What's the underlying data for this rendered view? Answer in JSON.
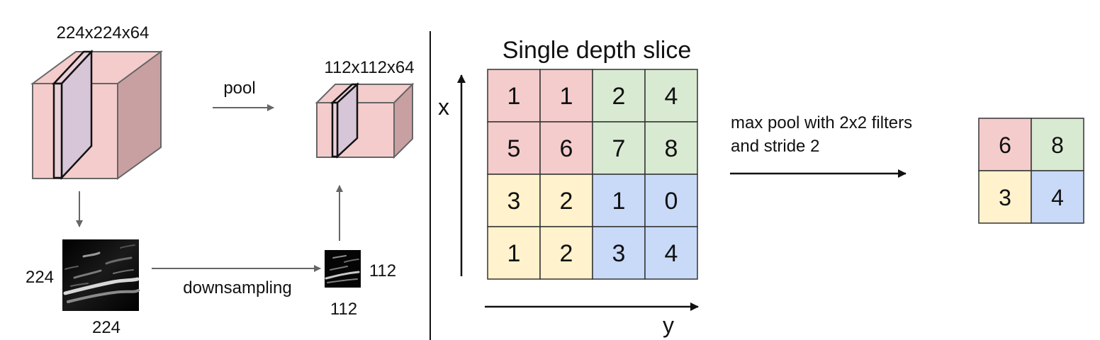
{
  "colors": {
    "red": "#f4cccc",
    "green": "#d9ead3",
    "yellow": "#fff2cc",
    "blue": "#c9daf8",
    "volume_front": "#f4cccc",
    "volume_side": "#c9a0a2",
    "slice": "#d8c5d3",
    "edge": "#666666",
    "arrow": "#666666",
    "grid_line": "#333333"
  },
  "left": {
    "input_volume_label": "224x224x64",
    "pool_label": "pool",
    "pooled_volume_label": "112x112x64",
    "input_map_height_label": "224",
    "input_map_width_label": "224",
    "downsampling_label": "downsampling",
    "pooled_map_height_label": "112",
    "pooled_map_width_label": "112"
  },
  "right": {
    "title": "Single depth slice",
    "x_axis_label": "x",
    "y_axis_label": "y",
    "grid": [
      [
        "1",
        "1",
        "2",
        "4"
      ],
      [
        "5",
        "6",
        "7",
        "8"
      ],
      [
        "3",
        "2",
        "1",
        "0"
      ],
      [
        "1",
        "2",
        "3",
        "4"
      ]
    ],
    "grid_colors": [
      [
        "red",
        "red",
        "green",
        "green"
      ],
      [
        "red",
        "red",
        "green",
        "green"
      ],
      [
        "yellow",
        "yellow",
        "blue",
        "blue"
      ],
      [
        "yellow",
        "yellow",
        "blue",
        "blue"
      ]
    ],
    "operation_line1": "max pool with 2x2 filters",
    "operation_line2": "and stride 2",
    "output": [
      [
        "6",
        "8"
      ],
      [
        "3",
        "4"
      ]
    ],
    "output_colors": [
      [
        "red",
        "green"
      ],
      [
        "yellow",
        "blue"
      ]
    ]
  }
}
